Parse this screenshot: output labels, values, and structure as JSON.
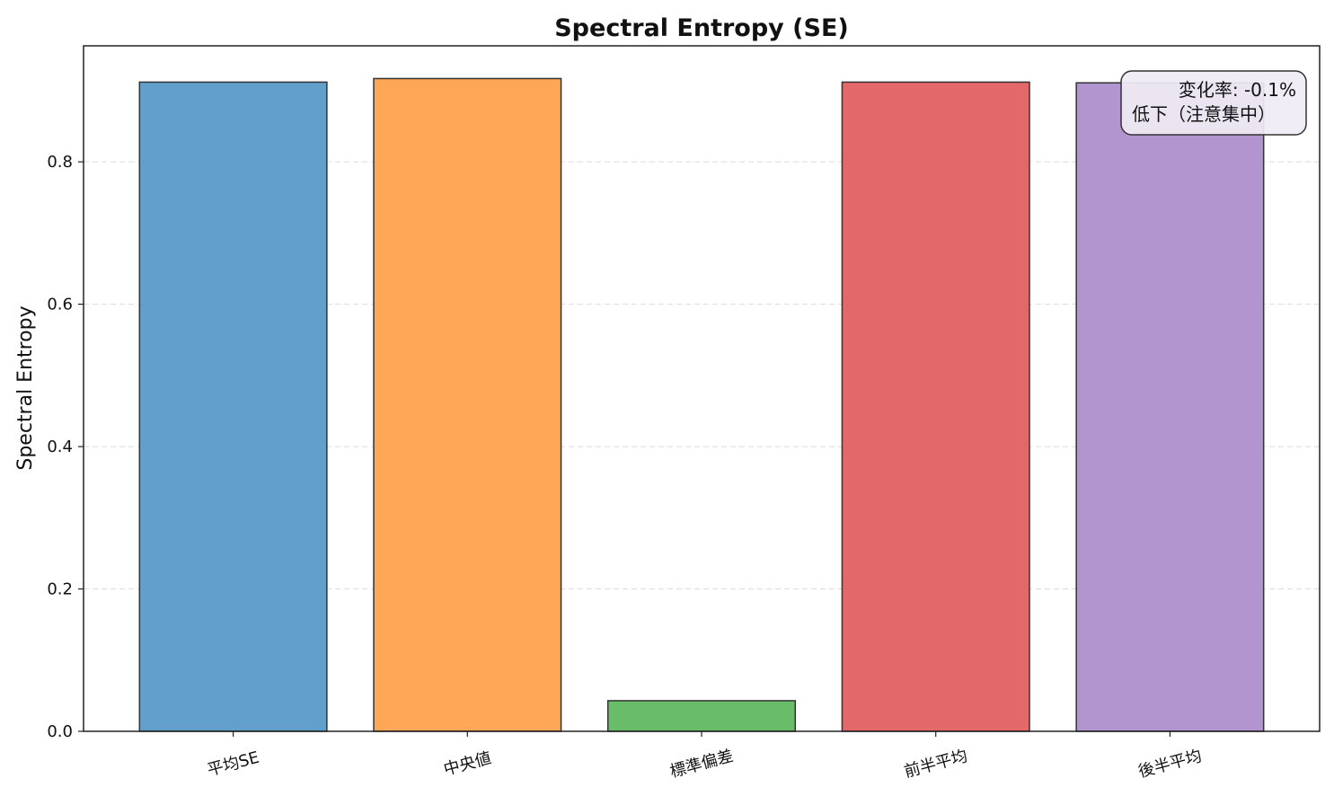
{
  "chart_data": {
    "type": "bar",
    "title": "Spectral Entropy (SE)",
    "xlabel": "",
    "ylabel": "Spectral Entropy",
    "ylim": [
      0,
      0.963
    ],
    "yticks": [
      0.0,
      0.2,
      0.4,
      0.6,
      0.8
    ],
    "ytick_labels": [
      "0.0",
      "0.2",
      "0.4",
      "0.6",
      "0.8"
    ],
    "grid": "y-dashed",
    "categories": [
      "平均SE",
      "中央値",
      "標準偏差",
      "前半平均",
      "後半平均"
    ],
    "values": [
      0.912,
      0.917,
      0.043,
      0.912,
      0.911
    ],
    "colors": [
      "#62a0cb",
      "#ffa657",
      "#6abd68",
      "#e2686a",
      "#b295cf"
    ],
    "edge_color": "#333333",
    "annotation": {
      "line1": "変化率: -0.1%",
      "line2": "低下（注意集中）",
      "placement": "top-right"
    }
  }
}
